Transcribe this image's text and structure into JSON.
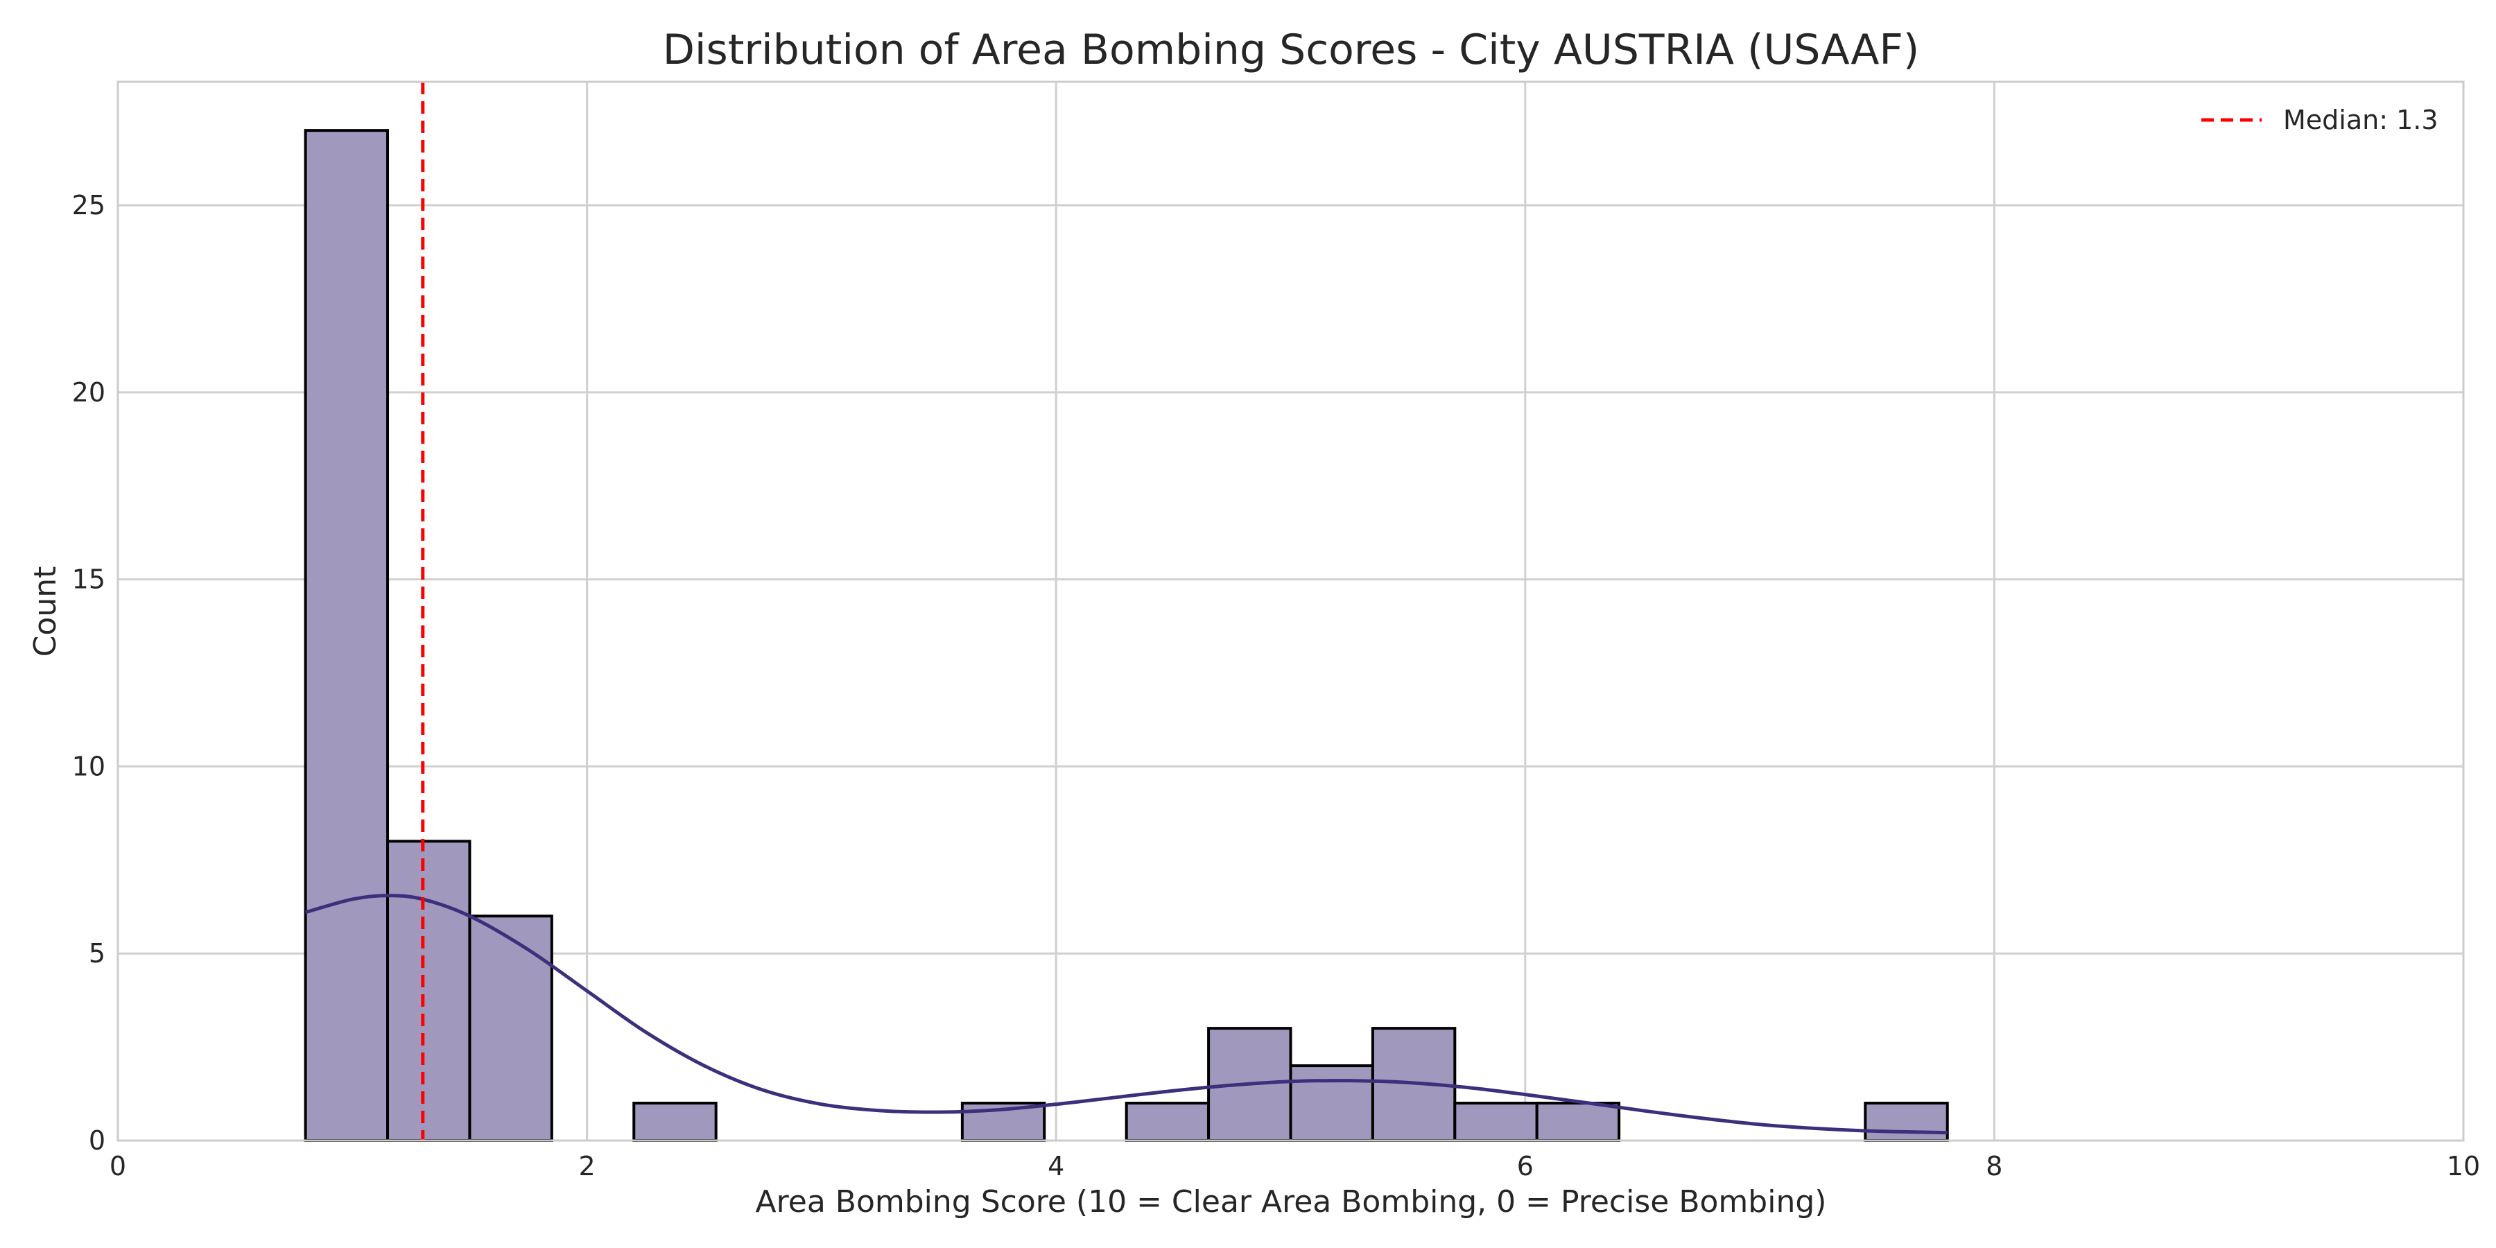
{
  "chart_data": {
    "type": "bar",
    "subtype": "histogram",
    "title": "Distribution of Area Bombing Scores - City AUSTRIA (USAAF)",
    "xlabel": "Area Bombing Score (10 = Clear Area Bombing, 0 = Precise Bombing)",
    "ylabel": "Count",
    "xlim": [
      0,
      10
    ],
    "ylim": [
      0,
      28.3
    ],
    "xticks": [
      0,
      2,
      4,
      6,
      8,
      10
    ],
    "yticks": [
      0,
      5,
      10,
      15,
      20,
      25
    ],
    "grid": true,
    "bars": [
      {
        "x0": 0.8,
        "x1": 1.15,
        "count": 27
      },
      {
        "x0": 1.15,
        "x1": 1.5,
        "count": 8
      },
      {
        "x0": 1.5,
        "x1": 1.85,
        "count": 6
      },
      {
        "x0": 1.85,
        "x1": 2.2,
        "count": 0
      },
      {
        "x0": 2.2,
        "x1": 2.55,
        "count": 1
      },
      {
        "x0": 2.55,
        "x1": 2.9,
        "count": 0
      },
      {
        "x0": 2.9,
        "x1": 3.25,
        "count": 0
      },
      {
        "x0": 3.25,
        "x1": 3.6,
        "count": 0
      },
      {
        "x0": 3.6,
        "x1": 3.95,
        "count": 1
      },
      {
        "x0": 3.95,
        "x1": 4.3,
        "count": 0
      },
      {
        "x0": 4.3,
        "x1": 4.65,
        "count": 1
      },
      {
        "x0": 4.65,
        "x1": 5.0,
        "count": 3
      },
      {
        "x0": 5.0,
        "x1": 5.35,
        "count": 2
      },
      {
        "x0": 5.35,
        "x1": 5.7,
        "count": 3
      },
      {
        "x0": 5.7,
        "x1": 6.05,
        "count": 1
      },
      {
        "x0": 6.05,
        "x1": 6.4,
        "count": 1
      },
      {
        "x0": 6.4,
        "x1": 6.75,
        "count": 0
      },
      {
        "x0": 6.75,
        "x1": 7.1,
        "count": 0
      },
      {
        "x0": 7.1,
        "x1": 7.45,
        "count": 0
      },
      {
        "x0": 7.45,
        "x1": 7.8,
        "count": 1
      }
    ],
    "kde": [
      {
        "x": 0.8,
        "y": 6.1
      },
      {
        "x": 1.0,
        "y": 6.45
      },
      {
        "x": 1.15,
        "y": 6.55
      },
      {
        "x": 1.3,
        "y": 6.45
      },
      {
        "x": 1.5,
        "y": 6.0
      },
      {
        "x": 1.75,
        "y": 5.1
      },
      {
        "x": 2.0,
        "y": 4.0
      },
      {
        "x": 2.25,
        "y": 2.9
      },
      {
        "x": 2.5,
        "y": 2.0
      },
      {
        "x": 2.75,
        "y": 1.35
      },
      {
        "x": 3.0,
        "y": 0.97
      },
      {
        "x": 3.25,
        "y": 0.8
      },
      {
        "x": 3.5,
        "y": 0.76
      },
      {
        "x": 3.75,
        "y": 0.82
      },
      {
        "x": 4.0,
        "y": 0.97
      },
      {
        "x": 4.25,
        "y": 1.15
      },
      {
        "x": 4.5,
        "y": 1.33
      },
      {
        "x": 4.75,
        "y": 1.48
      },
      {
        "x": 5.0,
        "y": 1.58
      },
      {
        "x": 5.25,
        "y": 1.6
      },
      {
        "x": 5.5,
        "y": 1.55
      },
      {
        "x": 5.75,
        "y": 1.42
      },
      {
        "x": 6.0,
        "y": 1.23
      },
      {
        "x": 6.25,
        "y": 1.02
      },
      {
        "x": 6.5,
        "y": 0.8
      },
      {
        "x": 6.75,
        "y": 0.6
      },
      {
        "x": 7.0,
        "y": 0.43
      },
      {
        "x": 7.25,
        "y": 0.32
      },
      {
        "x": 7.5,
        "y": 0.25
      },
      {
        "x": 7.8,
        "y": 0.21
      }
    ],
    "median": {
      "value": 1.3,
      "label": "Median: 1.3"
    },
    "legend": {
      "position": "top-right",
      "entries": [
        "Median: 1.3"
      ]
    },
    "colors": {
      "bar_fill": "#a198bd",
      "bar_edge": "#000000",
      "kde_line": "#3e2f7c",
      "median_line": "#ff0000"
    }
  }
}
